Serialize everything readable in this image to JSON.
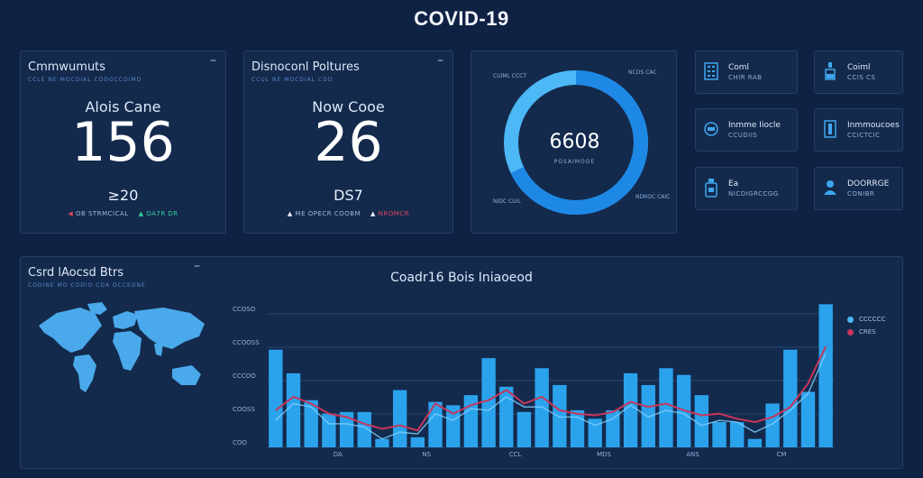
{
  "title": "COVID-19",
  "cards": [
    {
      "heading": "Cmmwumuts",
      "subheading": "CCLE NE MOCDIAL CDDOCCOIMD",
      "label": "Alois Cane",
      "value": "156",
      "sub_value": "≥20",
      "trend_left": "OB STRMCICAL",
      "trend_right": "OA7R DR"
    },
    {
      "heading": "Disnoconl Poltures",
      "subheading": "CCUL NE MOCDIAL CDD",
      "label": "Now Cooe",
      "value": "26",
      "sub_value": "DS7",
      "trend_left": "ME OPECR COOBM",
      "trend_right": "NROMCR"
    }
  ],
  "donut": {
    "center_value": "6608",
    "center_label": "PGSAIMOOE",
    "labels": [
      "CUIML CCCT",
      "NCOS CAC",
      "NIDC CUIL",
      "NDROC CAIC"
    ],
    "fraction": 0.68,
    "colors": {
      "track": "#4cb8f5",
      "arc": "#1e88e5"
    }
  },
  "mini_stats": [
    {
      "icon": "building-icon",
      "title": "Coml",
      "value": "CHIR RAB"
    },
    {
      "icon": "flask-icon",
      "title": "Coiml",
      "value": "CCIS CS"
    },
    {
      "icon": "bed-icon",
      "title": "Inmme Iiocle",
      "value": "CCUDIIS"
    },
    {
      "icon": "hospital-icon",
      "title": "Inmmoucoes",
      "value": "CCICTCIC"
    },
    {
      "icon": "medicine-bottle-icon",
      "title": "Ea",
      "value": "NICDIGRCCGG"
    },
    {
      "icon": "user-icon",
      "title": "DOORRGE",
      "value": "CONIBR"
    }
  ],
  "map_panel": {
    "heading": "Csrd lAocsd Btrs",
    "subheading": "CODINE MO CODIO CDA OCCEONE"
  },
  "chart_data": {
    "type": "bar",
    "title": "Coadr16 Bois Iniaoeod",
    "y_ticks": [
      "CCOSO",
      "CCOOSS",
      "CCCOO",
      "COOSS",
      "COO"
    ],
    "x_ticks": [
      "DA",
      "NS",
      "CCL",
      "MDS",
      "ANS",
      "CM"
    ],
    "series": [
      {
        "name": "CCCCCC",
        "color": "#2ba3ec",
        "values": [
          58,
          44,
          28,
          20,
          21,
          21,
          5,
          34,
          6,
          27,
          25,
          31,
          53,
          36,
          21,
          47,
          37,
          22,
          17,
          22,
          44,
          37,
          47,
          43,
          31,
          15,
          15,
          5,
          26,
          58,
          33,
          85
        ]
      },
      {
        "name": "CRES",
        "color": "#c8365a",
        "values": [
          22,
          30,
          26,
          20,
          18,
          14,
          11,
          13,
          10,
          26,
          20,
          25,
          28,
          34,
          26,
          30,
          22,
          20,
          19,
          21,
          27,
          24,
          26,
          22,
          19,
          20,
          17,
          15,
          18,
          24,
          38,
          60
        ]
      }
    ]
  }
}
